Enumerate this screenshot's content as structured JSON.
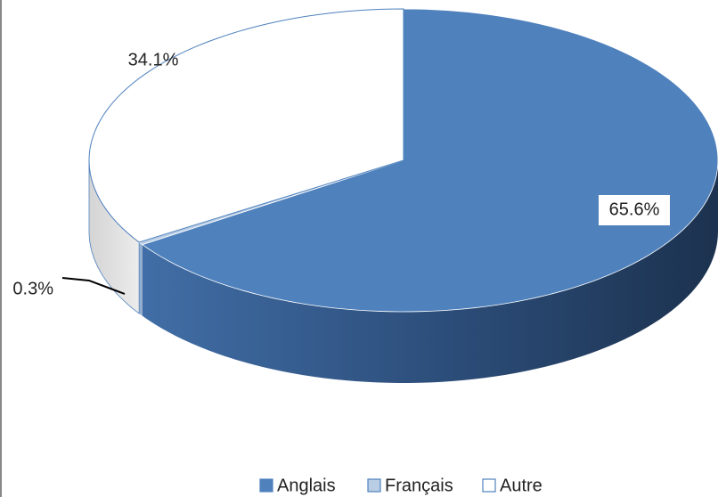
{
  "chart_data": {
    "type": "pie",
    "categories": [
      "Anglais",
      "Français",
      "Autre"
    ],
    "values": [
      65.6,
      0.3,
      34.1
    ],
    "value_labels": [
      "65.6%",
      "0.3%",
      "34.1%"
    ],
    "colors": [
      "#4f81bd",
      "#b9cde5",
      "#ffffff"
    ],
    "legend": "bottom"
  }
}
